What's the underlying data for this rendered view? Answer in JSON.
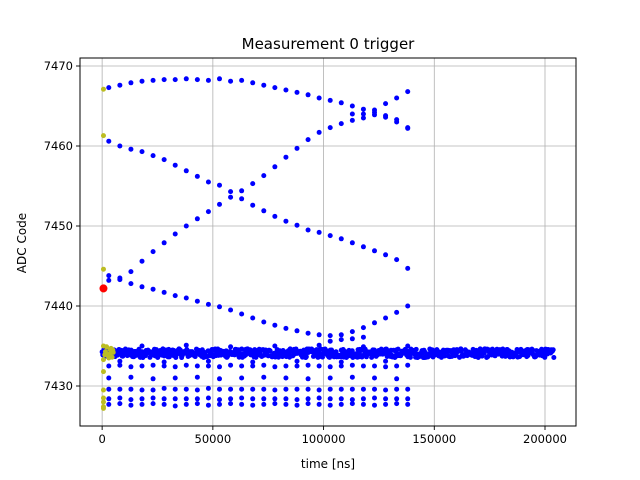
{
  "chart_data": {
    "type": "scatter",
    "title": "Measurement 0 trigger",
    "xlabel": "time [ns]",
    "ylabel": "ADC Code",
    "xlim": [
      -10000,
      214000
    ],
    "ylim": [
      7425,
      7471
    ],
    "x_ticks": [
      0,
      50000,
      100000,
      150000,
      200000
    ],
    "y_ticks": [
      7430,
      7440,
      7450,
      7460,
      7470
    ],
    "grid": true,
    "series": [
      {
        "color": "#0000ff",
        "marker_size": 4,
        "points": [
          [
            3000,
            7467.3
          ],
          [
            8000,
            7467.6
          ],
          [
            13000,
            7467.9
          ],
          [
            18000,
            7468.1
          ],
          [
            23000,
            7468.2
          ],
          [
            28000,
            7468.3
          ],
          [
            33000,
            7468.3
          ],
          [
            38000,
            7468.4
          ],
          [
            43000,
            7468.3
          ],
          [
            48000,
            7468.2
          ],
          [
            53000,
            7468.4
          ],
          [
            58000,
            7468.1
          ],
          [
            63000,
            7468.2
          ],
          [
            68000,
            7467.9
          ],
          [
            73000,
            7467.6
          ],
          [
            78000,
            7467.3
          ],
          [
            83000,
            7467.0
          ],
          [
            88000,
            7466.7
          ],
          [
            93000,
            7466.4
          ],
          [
            98000,
            7466.0
          ],
          [
            103000,
            7465.7
          ],
          [
            108000,
            7465.4
          ],
          [
            113000,
            7465.0
          ],
          [
            118000,
            7464.6
          ],
          [
            123000,
            7464.2
          ],
          [
            128000,
            7463.8
          ],
          [
            133000,
            7463.3
          ],
          [
            138000,
            7462.2
          ],
          [
            113000,
            7464.0
          ],
          [
            118000,
            7464.0
          ],
          [
            123000,
            7464.5
          ],
          [
            128000,
            7465.3
          ],
          [
            133000,
            7466.0
          ],
          [
            138000,
            7466.8
          ],
          [
            3000,
            7460.6
          ],
          [
            8000,
            7460.0
          ],
          [
            13000,
            7459.6
          ],
          [
            18000,
            7459.3
          ],
          [
            23000,
            7458.8
          ],
          [
            28000,
            7458.3
          ],
          [
            33000,
            7457.6
          ],
          [
            38000,
            7456.9
          ],
          [
            43000,
            7456.2
          ],
          [
            48000,
            7455.5
          ],
          [
            53000,
            7455.1
          ],
          [
            58000,
            7454.3
          ],
          [
            63000,
            7453.4
          ],
          [
            68000,
            7452.6
          ],
          [
            73000,
            7451.9
          ],
          [
            78000,
            7451.2
          ],
          [
            83000,
            7450.6
          ],
          [
            88000,
            7450.1
          ],
          [
            93000,
            7449.5
          ],
          [
            98000,
            7449.2
          ],
          [
            103000,
            7448.8
          ],
          [
            108000,
            7448.4
          ],
          [
            113000,
            7447.9
          ],
          [
            118000,
            7447.4
          ],
          [
            123000,
            7446.9
          ],
          [
            128000,
            7446.4
          ],
          [
            133000,
            7445.8
          ],
          [
            138000,
            7444.7
          ],
          [
            3000,
            7443.2
          ],
          [
            8000,
            7443.5
          ],
          [
            13000,
            7444.3
          ],
          [
            18000,
            7445.6
          ],
          [
            23000,
            7446.8
          ],
          [
            28000,
            7447.9
          ],
          [
            33000,
            7449.0
          ],
          [
            38000,
            7450.0
          ],
          [
            43000,
            7450.9
          ],
          [
            48000,
            7451.8
          ],
          [
            53000,
            7452.7
          ],
          [
            58000,
            7453.6
          ],
          [
            63000,
            7454.4
          ],
          [
            68000,
            7455.3
          ],
          [
            73000,
            7456.3
          ],
          [
            78000,
            7457.4
          ],
          [
            83000,
            7458.6
          ],
          [
            88000,
            7459.7
          ],
          [
            93000,
            7460.8
          ],
          [
            98000,
            7461.7
          ],
          [
            103000,
            7462.3
          ],
          [
            108000,
            7462.8
          ],
          [
            113000,
            7463.2
          ],
          [
            118000,
            7463.5
          ],
          [
            123000,
            7463.9
          ],
          [
            128000,
            7463.6
          ],
          [
            133000,
            7463.0
          ],
          [
            138000,
            7462.3
          ],
          [
            3000,
            7443.8
          ],
          [
            8000,
            7443.3
          ],
          [
            13000,
            7442.8
          ],
          [
            18000,
            7442.4
          ],
          [
            23000,
            7442.1
          ],
          [
            28000,
            7441.7
          ],
          [
            33000,
            7441.3
          ],
          [
            38000,
            7441.0
          ],
          [
            43000,
            7440.6
          ],
          [
            48000,
            7440.2
          ],
          [
            53000,
            7439.9
          ],
          [
            58000,
            7439.5
          ],
          [
            63000,
            7439.0
          ],
          [
            68000,
            7438.5
          ],
          [
            73000,
            7438.0
          ],
          [
            78000,
            7437.6
          ],
          [
            83000,
            7437.2
          ],
          [
            88000,
            7436.9
          ],
          [
            93000,
            7436.6
          ],
          [
            98000,
            7436.4
          ],
          [
            103000,
            7436.3
          ],
          [
            108000,
            7436.4
          ],
          [
            113000,
            7436.8
          ],
          [
            118000,
            7437.3
          ],
          [
            123000,
            7437.9
          ],
          [
            128000,
            7438.5
          ],
          [
            133000,
            7439.2
          ],
          [
            138000,
            7440.0
          ],
          [
            103000,
            7435.6
          ],
          [
            108000,
            7435.8
          ],
          [
            113000,
            7435.9
          ],
          [
            118000,
            7436.1
          ],
          [
            3000,
            7429.6
          ],
          [
            8000,
            7429.6
          ],
          [
            13000,
            7429.6
          ],
          [
            18000,
            7429.5
          ],
          [
            23000,
            7429.5
          ],
          [
            28000,
            7429.7
          ],
          [
            33000,
            7429.6
          ],
          [
            38000,
            7429.6
          ],
          [
            43000,
            7429.5
          ],
          [
            48000,
            7429.7
          ],
          [
            53000,
            7429.6
          ],
          [
            58000,
            7429.6
          ],
          [
            63000,
            7429.6
          ],
          [
            68000,
            7429.6
          ],
          [
            73000,
            7429.6
          ],
          [
            78000,
            7429.5
          ],
          [
            83000,
            7429.6
          ],
          [
            88000,
            7429.6
          ],
          [
            93000,
            7429.6
          ],
          [
            98000,
            7429.5
          ],
          [
            103000,
            7429.6
          ],
          [
            108000,
            7429.6
          ],
          [
            113000,
            7429.6
          ],
          [
            118000,
            7429.6
          ],
          [
            123000,
            7429.6
          ],
          [
            128000,
            7429.5
          ],
          [
            133000,
            7429.6
          ],
          [
            138000,
            7429.6
          ],
          [
            3000,
            7428.4
          ],
          [
            8000,
            7428.5
          ],
          [
            13000,
            7428.3
          ],
          [
            18000,
            7428.4
          ],
          [
            23000,
            7428.5
          ],
          [
            28000,
            7428.4
          ],
          [
            33000,
            7428.4
          ],
          [
            38000,
            7428.4
          ],
          [
            43000,
            7428.4
          ],
          [
            48000,
            7428.5
          ],
          [
            53000,
            7428.3
          ],
          [
            58000,
            7428.4
          ],
          [
            63000,
            7428.5
          ],
          [
            68000,
            7428.4
          ],
          [
            73000,
            7428.4
          ],
          [
            78000,
            7428.4
          ],
          [
            83000,
            7428.4
          ],
          [
            88000,
            7428.3
          ],
          [
            93000,
            7428.4
          ],
          [
            98000,
            7428.5
          ],
          [
            103000,
            7428.4
          ],
          [
            108000,
            7428.4
          ],
          [
            113000,
            7428.3
          ],
          [
            118000,
            7428.4
          ],
          [
            123000,
            7428.5
          ],
          [
            128000,
            7428.4
          ],
          [
            133000,
            7428.4
          ],
          [
            138000,
            7428.4
          ],
          [
            3000,
            7427.7
          ],
          [
            8000,
            7427.8
          ],
          [
            13000,
            7427.6
          ],
          [
            18000,
            7427.7
          ],
          [
            23000,
            7427.8
          ],
          [
            28000,
            7427.7
          ],
          [
            33000,
            7427.5
          ],
          [
            38000,
            7427.7
          ],
          [
            43000,
            7427.8
          ],
          [
            48000,
            7427.6
          ],
          [
            53000,
            7427.7
          ],
          [
            58000,
            7427.8
          ],
          [
            63000,
            7427.7
          ],
          [
            68000,
            7427.6
          ],
          [
            73000,
            7427.7
          ],
          [
            78000,
            7427.8
          ],
          [
            83000,
            7427.7
          ],
          [
            88000,
            7427.6
          ],
          [
            93000,
            7427.8
          ],
          [
            98000,
            7427.7
          ],
          [
            103000,
            7427.6
          ],
          [
            108000,
            7427.7
          ],
          [
            113000,
            7427.8
          ],
          [
            118000,
            7427.7
          ],
          [
            123000,
            7427.6
          ],
          [
            128000,
            7427.7
          ],
          [
            133000,
            7427.8
          ],
          [
            138000,
            7427.7
          ],
          [
            3000,
            7432.5
          ],
          [
            8000,
            7432.6
          ],
          [
            13000,
            7432.4
          ],
          [
            18000,
            7432.5
          ],
          [
            23000,
            7432.6
          ],
          [
            28000,
            7432.5
          ],
          [
            33000,
            7432.4
          ],
          [
            38000,
            7432.6
          ],
          [
            43000,
            7432.5
          ],
          [
            48000,
            7432.5
          ],
          [
            53000,
            7432.4
          ],
          [
            58000,
            7432.6
          ],
          [
            63000,
            7432.5
          ],
          [
            68000,
            7432.5
          ],
          [
            73000,
            7432.6
          ],
          [
            78000,
            7432.4
          ],
          [
            83000,
            7432.5
          ],
          [
            88000,
            7432.5
          ],
          [
            93000,
            7432.6
          ],
          [
            98000,
            7432.5
          ],
          [
            103000,
            7432.4
          ],
          [
            108000,
            7432.5
          ],
          [
            113000,
            7432.6
          ],
          [
            118000,
            7432.5
          ],
          [
            123000,
            7432.5
          ],
          [
            128000,
            7432.4
          ],
          [
            133000,
            7432.5
          ],
          [
            138000,
            7432.6
          ],
          [
            3000,
            7431.0
          ],
          [
            13000,
            7431.1
          ],
          [
            23000,
            7430.9
          ],
          [
            33000,
            7431.0
          ],
          [
            43000,
            7431.1
          ],
          [
            53000,
            7430.9
          ],
          [
            63000,
            7431.0
          ],
          [
            73000,
            7431.1
          ],
          [
            83000,
            7431.0
          ],
          [
            93000,
            7430.9
          ],
          [
            103000,
            7431.0
          ],
          [
            113000,
            7431.1
          ],
          [
            123000,
            7431.0
          ],
          [
            133000,
            7430.9
          ],
          [
            8000,
            7433.1
          ],
          [
            28000,
            7433.0
          ],
          [
            48000,
            7433.1
          ],
          [
            68000,
            7433.0
          ],
          [
            88000,
            7433.1
          ],
          [
            108000,
            7433.0
          ],
          [
            128000,
            7433.1
          ],
          [
            18000,
            7435.0
          ],
          [
            38000,
            7435.1
          ],
          [
            58000,
            7434.9
          ],
          [
            78000,
            7435.0
          ],
          [
            98000,
            7435.1
          ],
          [
            118000,
            7434.9
          ],
          [
            138000,
            7435.0
          ]
        ],
        "band": {
          "x_range": [
            0,
            204000
          ],
          "y_center": 7434.1,
          "y_halfwidth": 0.55,
          "count": 700
        }
      },
      {
        "color": "#bcbd22",
        "marker_size": 4,
        "points": [
          [
            600,
            7467.1
          ],
          [
            600,
            7461.3
          ],
          [
            600,
            7444.6
          ],
          [
            600,
            7442.0
          ],
          [
            600,
            7431.8
          ],
          [
            600,
            7429.5
          ],
          [
            600,
            7428.5
          ],
          [
            600,
            7428.0
          ],
          [
            600,
            7427.4
          ],
          [
            600,
            7427.2
          ],
          [
            600,
            7433.3
          ],
          [
            600,
            7435.0
          ],
          [
            1500,
            7434.3
          ],
          [
            2500,
            7433.8
          ],
          [
            3500,
            7434.6
          ],
          [
            4500,
            7433.6
          ],
          [
            5000,
            7434.2
          ],
          [
            2000,
            7434.9
          ],
          [
            3000,
            7433.5
          ],
          [
            4000,
            7434.7
          ],
          [
            1200,
            7433.9
          ],
          [
            4800,
            7434.5
          ],
          [
            2800,
            7434.0
          ],
          [
            3800,
            7434.1
          ]
        ]
      },
      {
        "color": "#ff0000",
        "marker_size": 7,
        "points": [
          [
            600,
            7442.2
          ]
        ]
      }
    ]
  }
}
